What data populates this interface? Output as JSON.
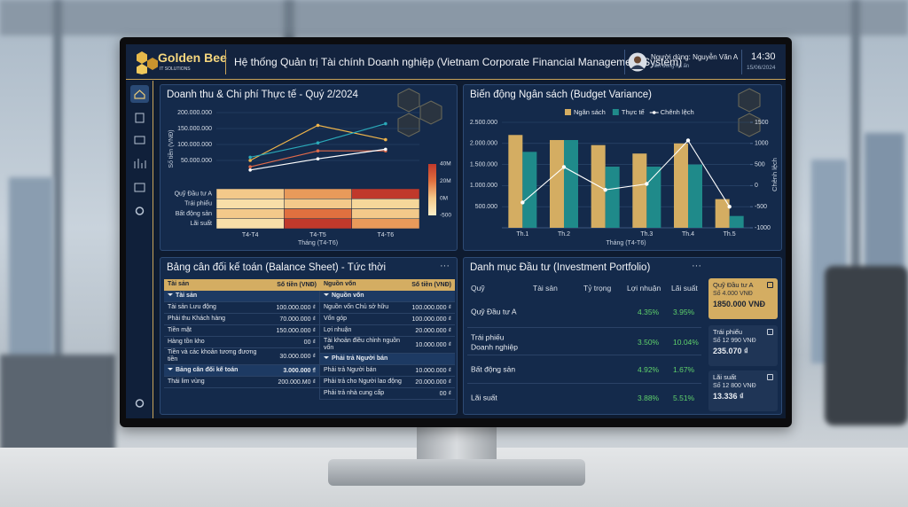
{
  "header": {
    "brand": "Golden Bee",
    "brand_tag": "IT SOLUTIONS",
    "title": "Hệ thống Quản trị Tài chính Doanh nghiệp (Vietnam Corporate Financial Management System)",
    "user": "Người dùng: Nguyễn Văn A",
    "user_note": "Tiền đồng hà ấn",
    "time": "14:30",
    "date": "15/06/2024"
  },
  "revenue": {
    "title": "Doanh thu & Chi phí Thực tế - Quý 2/2024",
    "line_chart": {
      "type": "line",
      "y_label": "Số tiền (VNĐ)",
      "ylim": [
        0,
        200000000
      ],
      "yticks": [
        {
          "value": 50000000,
          "label": "50.000.000"
        },
        {
          "value": 100000000,
          "label": "100.000.000"
        },
        {
          "value": 150000000,
          "label": "150.000.000"
        },
        {
          "value": 200000000,
          "label": "200.000.000"
        }
      ],
      "grid": true,
      "series": [
        {
          "color": "#f0b54a",
          "values": [
            50000000,
            160000000,
            115000000
          ]
        },
        {
          "color": "#2aa9b8",
          "values": [
            60000000,
            105000000,
            165000000
          ]
        },
        {
          "color": "#e06a4a",
          "values": [
            30000000,
            80000000,
            80000000
          ]
        },
        {
          "color": "#ffffff",
          "values": [
            20000000,
            55000000,
            85000000
          ]
        }
      ]
    },
    "heatmap": {
      "type": "heatmap",
      "rows": [
        "Quỹ Đầu tư A",
        "Trái phiếu",
        "Bất động sản",
        "Lãi suất"
      ],
      "categories": [
        "T4-T4",
        "T4-T5",
        "T4-T6"
      ],
      "x_label": "Tháng (T4-T6)",
      "cell_colors": [
        [
          "#f3c98a",
          "#e89a5a",
          "#c0392b"
        ],
        [
          "#f8dfa8",
          "#f3c98a",
          "#f6d79a"
        ],
        [
          "#f3c98a",
          "#e0703f",
          "#f3c98a"
        ],
        [
          "#f8dfa8",
          "#c0392b",
          "#e89a5a"
        ]
      ],
      "colorbar": {
        "colors": [
          "#c0392b",
          "#e0703f",
          "#f3c98a",
          "#fbeec8"
        ],
        "labels": [
          "40M",
          "20M",
          "0M",
          "-500"
        ]
      }
    }
  },
  "budget": {
    "title": "Biến động Ngân sách (Budget Variance)",
    "chart": {
      "type": "bar",
      "categories": [
        "Th.1",
        "Th.2",
        null,
        "Th.3",
        "Th.4",
        "Th.5"
      ],
      "x_label": "Tháng (T4-T6)",
      "y2_label": "Chênh lệch",
      "grid": true,
      "ylim": [
        0,
        2500000
      ],
      "yticks": [
        {
          "value": 500000,
          "label": "500.000"
        },
        {
          "value": 1000000,
          "label": "1.000.000"
        },
        {
          "value": 1500000,
          "label": "1.500.000"
        },
        {
          "value": 2000000,
          "label": "2.000.000"
        },
        {
          "value": 2500000,
          "label": "2.500.000"
        }
      ],
      "y2lim": [
        -1000,
        1500
      ],
      "y2ticks": [
        -1000,
        -500,
        0,
        500,
        1000,
        1500
      ],
      "series": [
        {
          "name": "Ngân sách",
          "color": "#d4ad62",
          "values": [
            2200000,
            2080000,
            1960000,
            1760000,
            2000000,
            680000
          ]
        },
        {
          "name": "Thực tế",
          "color": "#1f8a8a",
          "values": [
            1800000,
            2080000,
            1450000,
            1450000,
            1500000,
            280000
          ]
        },
        {
          "name": "Chênh lệch",
          "color": "#ffffff",
          "type": "line",
          "axis": "y2",
          "values": [
            -400,
            440,
            -100,
            40,
            1070,
            -500
          ]
        }
      ]
    }
  },
  "balance": {
    "title": "Bảng cân đối kế toán (Balance Sheet) - Tức thời",
    "menu": "···",
    "columns": [
      "Tài sản",
      "Số tiền (VNĐ)",
      "Nguồn vốn",
      "Số tiền (VNĐ)"
    ],
    "assets": [
      {
        "label": "Tài sản",
        "section": true
      },
      {
        "label": "Tài sản Lưu động",
        "amount": "100.000.000 ₫"
      },
      {
        "label": "Phải thu Khách hàng",
        "amount": "70.000.000 ₫"
      },
      {
        "label": "Tiền mặt",
        "amount": "150.000.000 ₫"
      },
      {
        "label": "Hàng tồn kho",
        "amount": "00 ₫"
      },
      {
        "label": "Tiền và các khoản tương đương tiền",
        "amount": "30.000.000 ₫"
      },
      {
        "label": "Bảng cân đối kế toán",
        "amount": "3.000.000 ₫",
        "section": true
      },
      {
        "label": "Thái lim vùng",
        "amount": "200.000.M0 ₫"
      }
    ],
    "liabilities": [
      {
        "label": "Nguồn vốn",
        "section": true
      },
      {
        "label": "Nguồn vốn Chủ sở hữu",
        "amount": "100.000.000 ₫"
      },
      {
        "label": "Vốn góp",
        "amount": "100.000.000 ₫"
      },
      {
        "label": "Lợi nhuận",
        "amount": "20.000.000 ₫"
      },
      {
        "label": "Tài khoản điều chỉnh nguồn vốn",
        "amount": "10.000.000 ₫"
      },
      {
        "label": "Phải trả Người bán",
        "section": true
      },
      {
        "label": "Phải trả Người bán",
        "amount": "10.000.000 ₫"
      },
      {
        "label": "Phải trả cho Người lao động",
        "amount": "20.000.000 ₫"
      },
      {
        "label": "Phải trả nhà cung cấp",
        "amount": "00 ₫"
      }
    ]
  },
  "portfolio": {
    "title": "Danh mục Đầu tư (Investment Portfolio)",
    "menu": "···",
    "columns": [
      "Quỹ",
      "Tài sản",
      "Tỷ trọng",
      "Lợi nhuận",
      "Lãi suất"
    ],
    "rows": [
      {
        "name": "Quỹ Đầu tư A",
        "profit": "4.35%",
        "rate": "3.95%"
      },
      {
        "name": "Trái phiếu Doanh nghiệp",
        "profit": "3.50%",
        "rate": "10.04%"
      },
      {
        "name": "Bất động sản",
        "profit": "4.92%",
        "rate": "1.67%"
      },
      {
        "name": "Lãi suất",
        "profit": "3.88%",
        "rate": "5.51%"
      }
    ],
    "cards": [
      {
        "title": "Quỹ Đầu tư A",
        "sub": "Số 4.000 VNĐ",
        "amount": "1850.000 VNĐ"
      },
      {
        "title": "Trái phiếu",
        "sub": "Số 12 990 VNĐ",
        "amount": "235.070 ₫"
      },
      {
        "title": "Lãi suất",
        "sub": "Số 12 800 VNĐ",
        "amount": "13.336 ₫"
      }
    ]
  }
}
